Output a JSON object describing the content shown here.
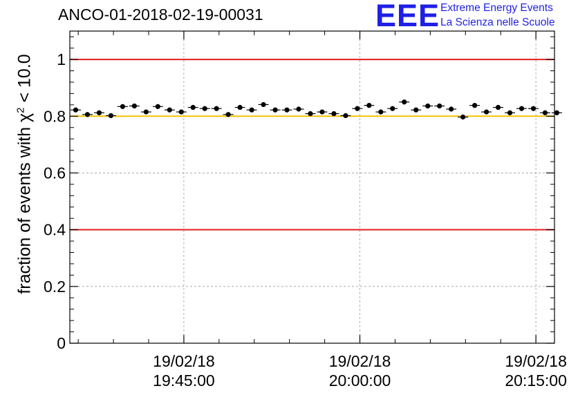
{
  "title": "ANCO-01-2018-02-19-00031",
  "logo": {
    "mark": "EEE",
    "line1": "Extreme Energy Events",
    "line2": "La Scienza nelle Scuole",
    "color": "#1f1fe6"
  },
  "chart_data": {
    "type": "scatter",
    "title": "ANCO-01-2018-02-19-00031",
    "ylabel": "fraction of events with",
    "ylabel_symbol": "χ",
    "ylabel_exp": "2",
    "ylabel_tail": " < 10.0",
    "ylim": [
      0,
      1.1
    ],
    "xlim": [
      "19/02/18 19:35:17",
      "19/02/18 20:16:35"
    ],
    "yticks": [
      "0",
      "0.2",
      "0.4",
      "0.6",
      "0.8",
      "1"
    ],
    "xticks": [
      {
        "date": "19/02/18",
        "time": "19:45:00",
        "t": 583
      },
      {
        "date": "19/02/18",
        "time": "20:00:00",
        "t": 1483
      },
      {
        "date": "19/02/18",
        "time": "20:15:00",
        "t": 2383
      }
    ],
    "grid": true,
    "reference_lines": [
      {
        "y": 1.0,
        "color": "#e41a1c"
      },
      {
        "y": 0.8,
        "color": "#f5c200"
      },
      {
        "y": 0.4,
        "color": "#e41a1c"
      }
    ],
    "series": [
      {
        "marker_color": "#000000",
        "x": [
          0,
          60,
          120,
          180,
          240,
          300,
          360,
          420,
          480,
          540,
          600,
          660,
          720,
          780,
          840,
          900,
          960,
          1020,
          1080,
          1140,
          1200,
          1260,
          1320,
          1380,
          1440,
          1500,
          1560,
          1620,
          1680,
          1740,
          1800,
          1860,
          1920,
          1980,
          2040,
          2100,
          2160,
          2220,
          2280,
          2340,
          2400,
          2460
        ],
        "y": [
          0.822,
          0.806,
          0.812,
          0.802,
          0.834,
          0.836,
          0.815,
          0.834,
          0.822,
          0.815,
          0.831,
          0.827,
          0.827,
          0.806,
          0.831,
          0.822,
          0.841,
          0.822,
          0.822,
          0.825,
          0.809,
          0.815,
          0.809,
          0.802,
          0.827,
          0.838,
          0.815,
          0.827,
          0.85,
          0.822,
          0.836,
          0.836,
          0.825,
          0.797,
          0.838,
          0.815,
          0.831,
          0.812,
          0.827,
          0.827,
          0.812,
          0.812
        ]
      }
    ]
  }
}
